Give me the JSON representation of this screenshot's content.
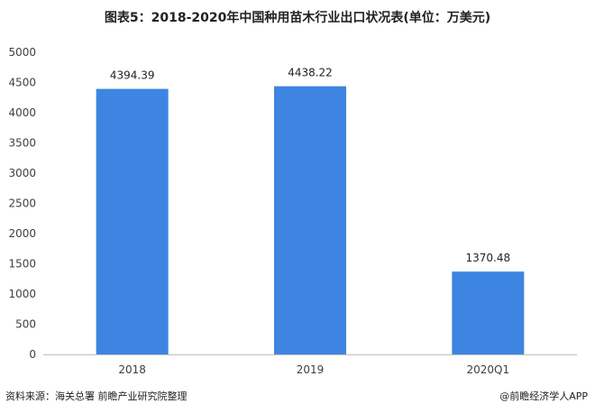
{
  "page": {
    "title": "图表5：2018-2020年中国种用苗木行业出口状况表(单位：万美元)",
    "source": "资料来源：海关总署 前瞻产业研究院整理",
    "credit": "@前瞻经济学人APP"
  },
  "chart_data": {
    "type": "bar",
    "title": "图表5：2018-2020年中国种用苗木行业出口状况表(单位：万美元)",
    "categories": [
      "2018",
      "2019",
      "2020Q1"
    ],
    "values": [
      4394.39,
      4438.22,
      1370.48
    ],
    "data_labels": [
      "4394.39",
      "4438.22",
      "1370.48"
    ],
    "yticks": [
      "0",
      "500",
      "1000",
      "1500",
      "2000",
      "2500",
      "3000",
      "3500",
      "4000",
      "4500",
      "5000"
    ],
    "ylim": [
      0,
      5000
    ],
    "xlabel": "",
    "ylabel": "",
    "grid": false,
    "legend": "none",
    "colors": {
      "bar": "#3d85e1",
      "axis": "#bfbfbf"
    }
  }
}
